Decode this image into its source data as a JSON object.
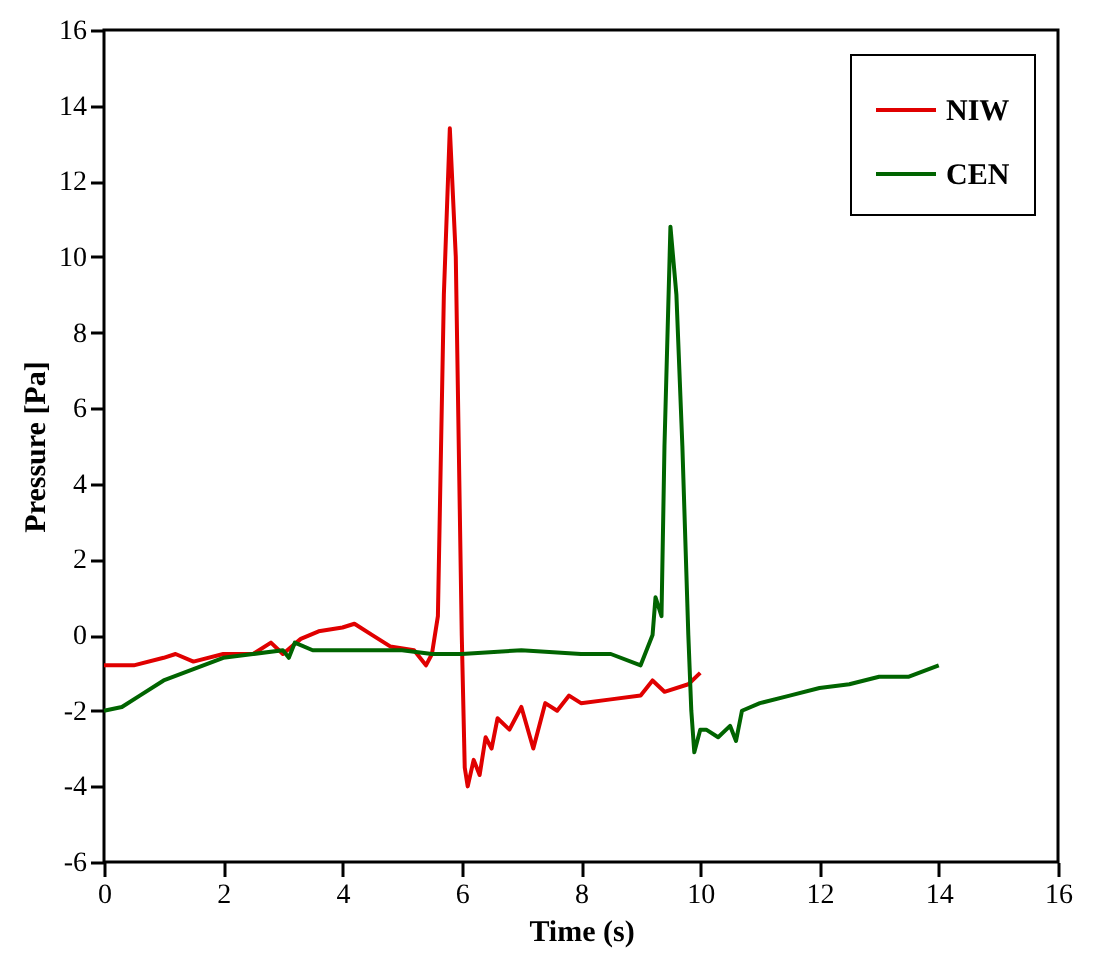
{
  "chart_data": {
    "type": "line",
    "xlabel": "Time (s)",
    "ylabel": "Pressure [Pa]",
    "xlim": [
      0,
      16
    ],
    "ylim": [
      -6,
      16
    ],
    "xticks": [
      0,
      2,
      4,
      6,
      8,
      10,
      12,
      14,
      16
    ],
    "yticks": [
      -6,
      -4,
      -2,
      0,
      2,
      4,
      6,
      8,
      10,
      12,
      14,
      16
    ],
    "grid": false,
    "legend": "top right",
    "marker": "none",
    "line_style": "solid",
    "series": [
      {
        "name": "NIW",
        "color": "#e00000",
        "x": [
          0,
          0.5,
          1,
          1.2,
          1.5,
          2,
          2.5,
          2.8,
          3,
          3.3,
          3.6,
          4,
          4.2,
          4.5,
          4.8,
          5.2,
          5.4,
          5.5,
          5.6,
          5.7,
          5.8,
          5.9,
          6.0,
          6.05,
          6.1,
          6.2,
          6.3,
          6.4,
          6.5,
          6.6,
          6.8,
          7.0,
          7.2,
          7.4,
          7.6,
          7.8,
          8.0,
          8.5,
          9,
          9.2,
          9.4,
          9.8,
          10
        ],
        "values": [
          -0.8,
          -0.8,
          -0.6,
          -0.5,
          -0.7,
          -0.5,
          -0.5,
          -0.2,
          -0.5,
          -0.1,
          0.1,
          0.2,
          0.3,
          0.0,
          -0.3,
          -0.4,
          -0.8,
          -0.5,
          0.5,
          9,
          13.4,
          10,
          0,
          -3.5,
          -4.0,
          -3.3,
          -3.7,
          -2.7,
          -3.0,
          -2.2,
          -2.5,
          -1.9,
          -3.0,
          -1.8,
          -2.0,
          -1.6,
          -1.8,
          -1.7,
          -1.6,
          -1.2,
          -1.5,
          -1.3,
          -1.0
        ]
      },
      {
        "name": "CEN",
        "color": "#006400",
        "x": [
          0,
          0.3,
          0.6,
          1,
          1.5,
          2,
          2.5,
          3,
          3.1,
          3.2,
          3.5,
          4,
          5,
          5.5,
          6,
          7,
          8,
          8.5,
          9.0,
          9.2,
          9.25,
          9.35,
          9.4,
          9.5,
          9.6,
          9.7,
          9.8,
          9.85,
          9.9,
          10.0,
          10.1,
          10.3,
          10.5,
          10.6,
          10.7,
          11,
          11.5,
          12,
          12.5,
          13,
          13.5,
          14
        ],
        "values": [
          -2.0,
          -1.9,
          -1.6,
          -1.2,
          -0.9,
          -0.6,
          -0.5,
          -0.4,
          -0.6,
          -0.2,
          -0.4,
          -0.4,
          -0.4,
          -0.5,
          -0.5,
          -0.4,
          -0.5,
          -0.5,
          -0.8,
          0.0,
          1.0,
          0.5,
          5,
          10.8,
          9,
          5,
          0,
          -2.0,
          -3.1,
          -2.5,
          -2.5,
          -2.7,
          -2.4,
          -2.8,
          -2.0,
          -1.8,
          -1.6,
          -1.4,
          -1.3,
          -1.1,
          -1.1,
          -0.8
        ]
      }
    ]
  }
}
